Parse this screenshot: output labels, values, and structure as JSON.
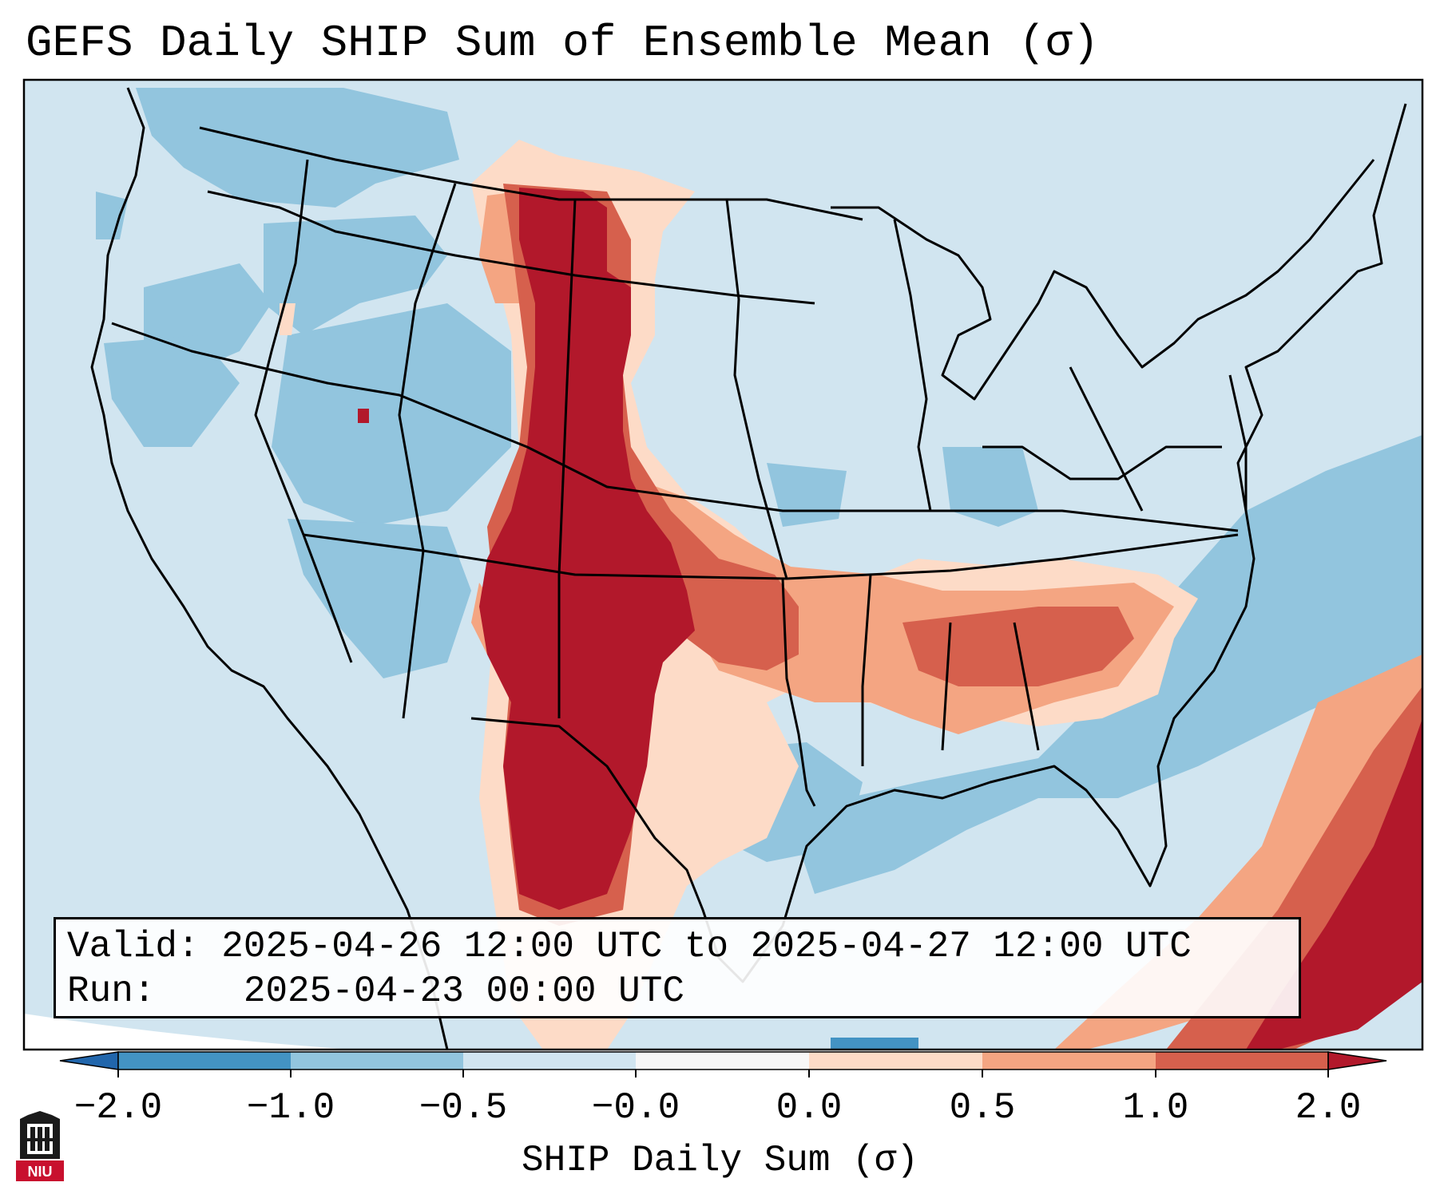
{
  "title": "GEFS Daily SHIP Sum of Ensemble Mean (σ)",
  "info": {
    "valid_label": "Valid:",
    "valid_value": "2025-04-26 12:00 UTC to 2025-04-27 12:00 UTC",
    "run_label": "Run:",
    "run_value": "2025-04-23 00:00 UTC"
  },
  "colorbar": {
    "label": "SHIP Daily Sum (σ)",
    "ticks": [
      "−2.0",
      "−1.0",
      "−0.5",
      "−0.0",
      "0.0",
      "0.5",
      "1.0",
      "2.0"
    ],
    "bins": [
      {
        "range": "< -2.0",
        "color": "#2166ac"
      },
      {
        "range": "-2.0 to -1.0",
        "color": "#4393c3"
      },
      {
        "range": "-1.0 to -0.5",
        "color": "#92c5de"
      },
      {
        "range": "-0.5 to -0.0",
        "color": "#d1e5f0"
      },
      {
        "range": "-0.0 to 0.0",
        "color": "#f7f7f7"
      },
      {
        "range": "0.0 to 0.5",
        "color": "#fddbc7"
      },
      {
        "range": "0.5 to 1.0",
        "color": "#f4a582"
      },
      {
        "range": "1.0 to 2.0",
        "color": "#d6604d"
      },
      {
        "range": "> 2.0",
        "color": "#b2182b"
      }
    ]
  },
  "map": {
    "region": "Contiguous United States",
    "background_category": "-0.5 to -0.0",
    "regions": [
      {
        "name": "northwest-negative-area",
        "category": "-1.0 to -0.5"
      },
      {
        "name": "great-basin-negative-area",
        "category": "-1.0 to -0.5"
      },
      {
        "name": "southwest-negative-area",
        "category": "-1.0 to -0.5"
      },
      {
        "name": "atlantic-negative-area",
        "category": "-1.0 to -0.5"
      },
      {
        "name": "gulf-negative-area",
        "category": "-1.0 to -0.5"
      },
      {
        "name": "high-plains-corridor",
        "category": "> 2.0"
      },
      {
        "name": "southern-plains-band",
        "category": "1.0 to 2.0"
      },
      {
        "name": "southeast-band",
        "category": "0.5 to 1.0"
      },
      {
        "name": "plains-fringe",
        "category": "0.0 to 0.5"
      },
      {
        "name": "atlantic-subtropics",
        "category": "> 2.0"
      }
    ]
  },
  "logo": {
    "text": "NIU"
  }
}
